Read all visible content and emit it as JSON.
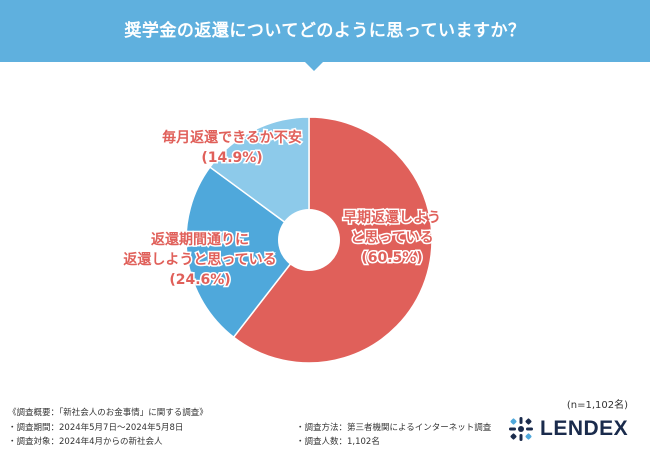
{
  "header": {
    "title": "奨学金の返還についてどのように思っていますか？"
  },
  "chart_data": {
    "type": "pie",
    "title": "奨学金の返還についてどのように思っていますか？",
    "slices": [
      {
        "label_lines": [
          "早期返還しよう",
          "と思っている"
        ],
        "value_text": "(60.5%)",
        "value": 60.5,
        "color": "#e0605a"
      },
      {
        "label_lines": [
          "返還期間通りに",
          "返還しようと思っている"
        ],
        "value_text": "(24.6%)",
        "value": 24.6,
        "color": "#4fa8db"
      },
      {
        "label_lines": [
          "毎月返還できるか不安"
        ],
        "value_text": "(14.9%)",
        "value": 14.9,
        "color": "#8dcaea"
      }
    ]
  },
  "sample_size": "(n=1,102名)",
  "survey": {
    "overview": "《調査概要：「新社会人のお金事情」に関する調査》",
    "period": "・調査期間：2024年5月7日〜2024年5月8日",
    "target": "・調査対象：2024年4月からの新社会人",
    "method": "・調査方法：第三者機関によるインターネット調査",
    "count": "・調査人数：1,102名"
  },
  "logo": {
    "text": "LENDEX",
    "icon": "lendex-logo-icon",
    "color": "#1a2b4c"
  }
}
